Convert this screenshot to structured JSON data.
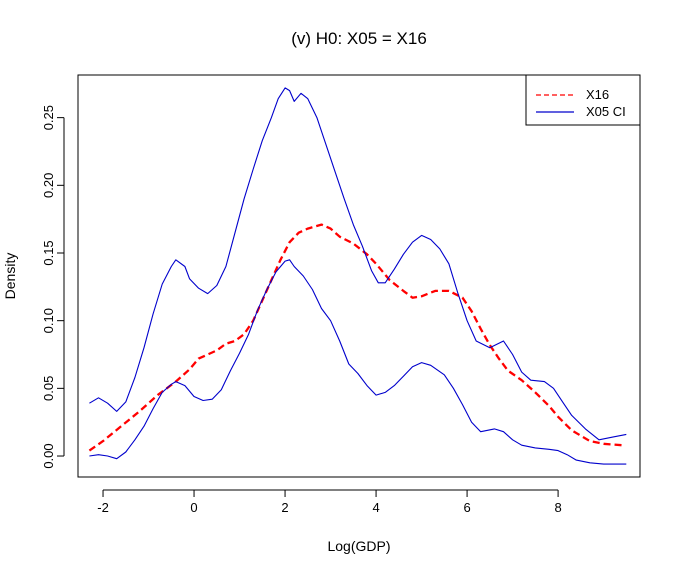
{
  "chart_data": {
    "type": "line",
    "title": "(v) H0: X05 = X16",
    "xlabel": "Log(GDP)",
    "ylabel": "Density",
    "xlim": [
      -2.55,
      9.8
    ],
    "ylim": [
      -0.0155,
      0.2815
    ],
    "x_ticks": [
      -2,
      0,
      2,
      4,
      6,
      8
    ],
    "x_tick_labels": [
      "-2",
      "0",
      "2",
      "4",
      "6",
      "8"
    ],
    "y_ticks": [
      0.0,
      0.05,
      0.1,
      0.15,
      0.2,
      0.25
    ],
    "y_tick_labels": [
      "0.00",
      "0.05",
      "0.10",
      "0.15",
      "0.20",
      "0.25"
    ],
    "grid": false,
    "legend_position": "top-right",
    "legend": [
      {
        "label": "X16",
        "color": "#ff0000",
        "style": "dashed"
      },
      {
        "label": "X05 CI",
        "color": "#0000cc",
        "style": "solid"
      }
    ],
    "series": [
      {
        "name": "X16",
        "color": "#ff0000",
        "style": "dashed",
        "points": [
          [
            -2.3,
            0.004
          ],
          [
            -2.0,
            0.011
          ],
          [
            -1.6,
            0.022
          ],
          [
            -1.2,
            0.033
          ],
          [
            -0.8,
            0.045
          ],
          [
            -0.4,
            0.055
          ],
          [
            -0.1,
            0.064
          ],
          [
            0.1,
            0.072
          ],
          [
            0.3,
            0.075
          ],
          [
            0.5,
            0.078
          ],
          [
            0.7,
            0.083
          ],
          [
            0.9,
            0.085
          ],
          [
            1.1,
            0.09
          ],
          [
            1.3,
            0.1
          ],
          [
            1.5,
            0.115
          ],
          [
            1.7,
            0.13
          ],
          [
            1.9,
            0.145
          ],
          [
            2.1,
            0.158
          ],
          [
            2.3,
            0.165
          ],
          [
            2.5,
            0.168
          ],
          [
            2.8,
            0.171
          ],
          [
            3.0,
            0.168
          ],
          [
            3.2,
            0.162
          ],
          [
            3.5,
            0.157
          ],
          [
            3.8,
            0.149
          ],
          [
            4.0,
            0.142
          ],
          [
            4.3,
            0.13
          ],
          [
            4.6,
            0.122
          ],
          [
            4.8,
            0.117
          ],
          [
            5.0,
            0.118
          ],
          [
            5.3,
            0.122
          ],
          [
            5.6,
            0.122
          ],
          [
            5.9,
            0.117
          ],
          [
            6.1,
            0.107
          ],
          [
            6.3,
            0.094
          ],
          [
            6.5,
            0.082
          ],
          [
            6.7,
            0.072
          ],
          [
            6.9,
            0.063
          ],
          [
            7.2,
            0.056
          ],
          [
            7.5,
            0.047
          ],
          [
            7.8,
            0.037
          ],
          [
            8.0,
            0.029
          ],
          [
            8.3,
            0.019
          ],
          [
            8.7,
            0.011
          ],
          [
            9.0,
            0.009
          ],
          [
            9.4,
            0.008
          ]
        ]
      },
      {
        "name": "X05 CI",
        "color": "#0000cc",
        "style": "solid",
        "points": [
          [
            -2.3,
            0.039
          ],
          [
            -2.1,
            0.043
          ],
          [
            -1.9,
            0.039
          ],
          [
            -1.7,
            0.033
          ],
          [
            -1.5,
            0.04
          ],
          [
            -1.3,
            0.058
          ],
          [
            -1.1,
            0.08
          ],
          [
            -0.9,
            0.105
          ],
          [
            -0.7,
            0.127
          ],
          [
            -0.5,
            0.14
          ],
          [
            -0.4,
            0.145
          ],
          [
            -0.2,
            0.14
          ],
          [
            -0.1,
            0.131
          ],
          [
            0.1,
            0.124
          ],
          [
            0.3,
            0.12
          ],
          [
            0.5,
            0.126
          ],
          [
            0.7,
            0.14
          ],
          [
            0.9,
            0.165
          ],
          [
            1.1,
            0.19
          ],
          [
            1.3,
            0.212
          ],
          [
            1.5,
            0.233
          ],
          [
            1.7,
            0.25
          ],
          [
            1.85,
            0.264
          ],
          [
            2.0,
            0.272
          ],
          [
            2.1,
            0.27
          ],
          [
            2.2,
            0.262
          ],
          [
            2.35,
            0.268
          ],
          [
            2.5,
            0.264
          ],
          [
            2.7,
            0.25
          ],
          [
            2.9,
            0.23
          ],
          [
            3.1,
            0.21
          ],
          [
            3.3,
            0.19
          ],
          [
            3.5,
            0.171
          ],
          [
            3.7,
            0.155
          ],
          [
            3.9,
            0.137
          ],
          [
            4.05,
            0.128
          ],
          [
            4.2,
            0.128
          ],
          [
            4.4,
            0.138
          ],
          [
            4.6,
            0.149
          ],
          [
            4.8,
            0.158
          ],
          [
            5.0,
            0.163
          ],
          [
            5.2,
            0.16
          ],
          [
            5.4,
            0.153
          ],
          [
            5.6,
            0.142
          ],
          [
            5.8,
            0.12
          ],
          [
            6.0,
            0.1
          ],
          [
            6.2,
            0.085
          ],
          [
            6.5,
            0.08
          ],
          [
            6.8,
            0.085
          ],
          [
            7.0,
            0.075
          ],
          [
            7.2,
            0.062
          ],
          [
            7.4,
            0.056
          ],
          [
            7.7,
            0.055
          ],
          [
            7.9,
            0.05
          ],
          [
            8.1,
            0.04
          ],
          [
            8.3,
            0.03
          ],
          [
            8.6,
            0.02
          ],
          [
            8.9,
            0.012
          ],
          [
            9.2,
            0.014
          ],
          [
            9.5,
            0.016
          ]
        ]
      },
      {
        "name": "X05 CI lower",
        "color": "#0000cc",
        "style": "solid",
        "points": [
          [
            -2.3,
            0.0
          ],
          [
            -2.1,
            0.001
          ],
          [
            -1.9,
            0.0
          ],
          [
            -1.7,
            -0.002
          ],
          [
            -1.5,
            0.003
          ],
          [
            -1.3,
            0.012
          ],
          [
            -1.1,
            0.022
          ],
          [
            -0.9,
            0.035
          ],
          [
            -0.7,
            0.047
          ],
          [
            -0.5,
            0.053
          ],
          [
            -0.4,
            0.055
          ],
          [
            -0.2,
            0.052
          ],
          [
            0.0,
            0.044
          ],
          [
            0.2,
            0.041
          ],
          [
            0.4,
            0.042
          ],
          [
            0.6,
            0.049
          ],
          [
            0.8,
            0.063
          ],
          [
            1.0,
            0.076
          ],
          [
            1.2,
            0.09
          ],
          [
            1.4,
            0.108
          ],
          [
            1.6,
            0.123
          ],
          [
            1.8,
            0.136
          ],
          [
            2.0,
            0.144
          ],
          [
            2.1,
            0.145
          ],
          [
            2.2,
            0.14
          ],
          [
            2.4,
            0.133
          ],
          [
            2.6,
            0.123
          ],
          [
            2.8,
            0.109
          ],
          [
            3.0,
            0.1
          ],
          [
            3.2,
            0.085
          ],
          [
            3.4,
            0.068
          ],
          [
            3.6,
            0.061
          ],
          [
            3.8,
            0.052
          ],
          [
            4.0,
            0.045
          ],
          [
            4.2,
            0.047
          ],
          [
            4.4,
            0.052
          ],
          [
            4.6,
            0.059
          ],
          [
            4.8,
            0.066
          ],
          [
            5.0,
            0.069
          ],
          [
            5.2,
            0.067
          ],
          [
            5.5,
            0.06
          ],
          [
            5.7,
            0.05
          ],
          [
            5.9,
            0.038
          ],
          [
            6.1,
            0.025
          ],
          [
            6.3,
            0.018
          ],
          [
            6.6,
            0.02
          ],
          [
            6.8,
            0.018
          ],
          [
            7.0,
            0.012
          ],
          [
            7.2,
            0.008
          ],
          [
            7.5,
            0.006
          ],
          [
            7.8,
            0.005
          ],
          [
            8.0,
            0.004
          ],
          [
            8.2,
            0.001
          ],
          [
            8.4,
            -0.003
          ],
          [
            8.7,
            -0.005
          ],
          [
            9.0,
            -0.006
          ],
          [
            9.5,
            -0.006
          ]
        ]
      }
    ]
  }
}
